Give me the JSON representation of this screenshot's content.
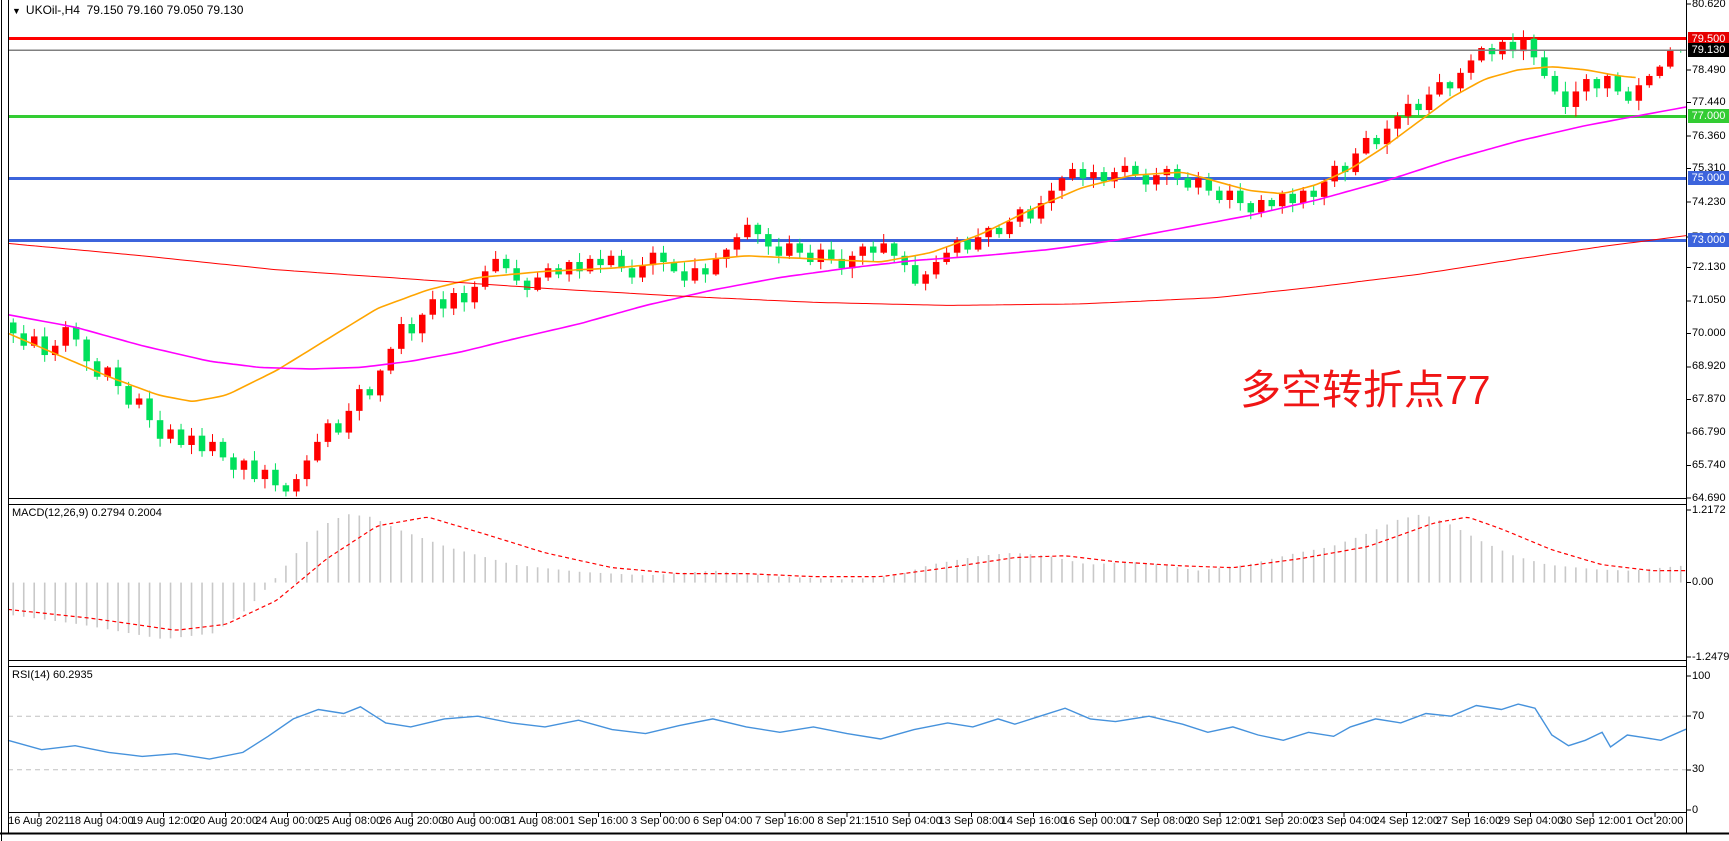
{
  "window": {
    "symbol_title": "UKOil-,H4",
    "ohlc_text": "79.150 79.160 79.050 79.130",
    "dropdown_glyph": "▼"
  },
  "annotation": {
    "text": "多空转折点77",
    "color": "#f01515"
  },
  "colors": {
    "up": "#ff0000",
    "down": "#00e05c",
    "ma_fast": "#ffa500",
    "ma_mid": "#ff00ff",
    "ma_slow": "#ff0000",
    "macd_hist": "#c8c8c8",
    "macd_signal": "#ff0000",
    "rsi_line": "#4692dc",
    "rsi_level": "#c0c0c0",
    "border": "#000000",
    "current_line": "#808080"
  },
  "chart_data": {
    "type": "candlestick",
    "title": "UKOil- H4 crude oil chart with MACD and RSI",
    "current": {
      "open": 79.15,
      "high": 79.16,
      "low": 79.05,
      "close": 79.13
    },
    "price_axis": {
      "min": 64.69,
      "max": 80.62,
      "ticks": [
        "80.620",
        "78.490",
        "77.440",
        "76.360",
        "75.310",
        "74.230",
        "73.100",
        "72.130",
        "71.050",
        "70.000",
        "68.920",
        "67.870",
        "66.790",
        "65.740",
        "64.690"
      ]
    },
    "hlines": [
      {
        "price": 79.5,
        "color": "#ff0000",
        "width": 3,
        "badge": "79.500",
        "badge_bg": "#e60000",
        "badge_fg": "#ffffff"
      },
      {
        "price": 79.13,
        "color": "#808080",
        "width": 1,
        "badge": "79.130",
        "badge_bg": "#000000",
        "badge_fg": "#ffffff"
      },
      {
        "price": 77.0,
        "color": "#33cc33",
        "width": 3,
        "badge": "77.000",
        "badge_bg": "#33cc33",
        "badge_fg": "#ffffff"
      },
      {
        "price": 75.0,
        "color": "#3c64dc",
        "width": 3,
        "badge": "75.000",
        "badge_bg": "#3c64dc",
        "badge_fg": "#ffffff"
      },
      {
        "price": 73.0,
        "color": "#3c64dc",
        "width": 3,
        "badge": "73.000",
        "badge_bg": "#3c64dc",
        "badge_fg": "#ffffff"
      }
    ],
    "closes": [
      70.0,
      69.6,
      69.9,
      69.3,
      69.6,
      70.2,
      69.8,
      69.1,
      68.6,
      68.9,
      68.3,
      67.7,
      67.9,
      67.2,
      66.6,
      66.9,
      66.4,
      66.7,
      66.2,
      66.5,
      66.0,
      65.6,
      65.9,
      65.3,
      65.6,
      65.1,
      64.9,
      65.3,
      65.9,
      66.5,
      67.1,
      66.8,
      67.5,
      68.2,
      68.0,
      68.8,
      69.5,
      70.3,
      70.0,
      70.6,
      71.1,
      70.8,
      71.3,
      71.0,
      71.5,
      72.0,
      72.4,
      72.1,
      71.7,
      71.4,
      71.8,
      72.1,
      71.9,
      72.3,
      72.0,
      72.4,
      72.2,
      72.5,
      72.1,
      71.8,
      72.2,
      72.6,
      72.3,
      72.0,
      71.7,
      72.1,
      71.9,
      72.4,
      72.7,
      73.1,
      73.5,
      73.2,
      72.8,
      72.5,
      72.9,
      72.6,
      72.3,
      72.7,
      72.4,
      72.1,
      72.5,
      72.8,
      72.6,
      72.9,
      72.5,
      72.2,
      71.6,
      71.9,
      72.3,
      72.6,
      73.0,
      72.7,
      73.1,
      73.4,
      73.2,
      73.6,
      74.0,
      73.7,
      74.2,
      74.6,
      75.0,
      75.3,
      75.0,
      75.2,
      74.9,
      75.2,
      75.4,
      75.1,
      74.8,
      75.1,
      75.3,
      75.0,
      74.7,
      75.0,
      74.6,
      74.3,
      74.6,
      74.2,
      73.9,
      74.3,
      74.1,
      74.5,
      74.2,
      74.6,
      74.4,
      74.9,
      75.4,
      75.2,
      75.8,
      76.3,
      76.1,
      76.6,
      77.0,
      77.4,
      77.2,
      77.7,
      78.1,
      77.9,
      78.4,
      78.8,
      79.2,
      79.0,
      79.4,
      79.1,
      79.5,
      78.9,
      78.3,
      77.8,
      77.3,
      77.8,
      78.2,
      77.9,
      78.3,
      77.8,
      77.5,
      78.0,
      78.3,
      78.6,
      79.15,
      79.13
    ],
    "ma_lines": [
      {
        "name": "fast-ma-orange",
        "color": "#ffa500",
        "points": [
          [
            0,
            70.0
          ],
          [
            0.03,
            69.3
          ],
          [
            0.06,
            68.6
          ],
          [
            0.09,
            68.0
          ],
          [
            0.11,
            67.8
          ],
          [
            0.13,
            68.0
          ],
          [
            0.16,
            68.8
          ],
          [
            0.19,
            69.8
          ],
          [
            0.22,
            70.8
          ],
          [
            0.25,
            71.4
          ],
          [
            0.28,
            71.8
          ],
          [
            0.32,
            72.0
          ],
          [
            0.36,
            72.1
          ],
          [
            0.4,
            72.3
          ],
          [
            0.44,
            72.5
          ],
          [
            0.48,
            72.4
          ],
          [
            0.52,
            72.3
          ],
          [
            0.55,
            72.6
          ],
          [
            0.58,
            73.2
          ],
          [
            0.61,
            74.0
          ],
          [
            0.64,
            74.7
          ],
          [
            0.67,
            75.1
          ],
          [
            0.7,
            75.2
          ],
          [
            0.72,
            74.9
          ],
          [
            0.74,
            74.6
          ],
          [
            0.76,
            74.5
          ],
          [
            0.78,
            74.8
          ],
          [
            0.8,
            75.3
          ],
          [
            0.82,
            76.0
          ],
          [
            0.84,
            76.8
          ],
          [
            0.86,
            77.6
          ],
          [
            0.88,
            78.2
          ],
          [
            0.9,
            78.5
          ],
          [
            0.92,
            78.6
          ],
          [
            0.94,
            78.5
          ],
          [
            0.96,
            78.3
          ],
          [
            0.97,
            78.25
          ]
        ]
      },
      {
        "name": "mid-ma-magenta",
        "color": "#ff00ff",
        "points": [
          [
            0,
            70.6
          ],
          [
            0.04,
            70.2
          ],
          [
            0.08,
            69.6
          ],
          [
            0.12,
            69.1
          ],
          [
            0.15,
            68.9
          ],
          [
            0.18,
            68.85
          ],
          [
            0.21,
            68.9
          ],
          [
            0.24,
            69.1
          ],
          [
            0.27,
            69.4
          ],
          [
            0.3,
            69.8
          ],
          [
            0.34,
            70.3
          ],
          [
            0.38,
            70.9
          ],
          [
            0.42,
            71.4
          ],
          [
            0.46,
            71.8
          ],
          [
            0.5,
            72.1
          ],
          [
            0.54,
            72.35
          ],
          [
            0.58,
            72.5
          ],
          [
            0.62,
            72.7
          ],
          [
            0.66,
            73.0
          ],
          [
            0.7,
            73.4
          ],
          [
            0.74,
            73.8
          ],
          [
            0.78,
            74.3
          ],
          [
            0.82,
            74.9
          ],
          [
            0.86,
            75.6
          ],
          [
            0.9,
            76.2
          ],
          [
            0.94,
            76.7
          ],
          [
            0.97,
            77.0
          ],
          [
            1,
            77.3
          ]
        ]
      },
      {
        "name": "slow-ma-red",
        "color": "#ff0000",
        "points": [
          [
            0,
            72.9
          ],
          [
            0.08,
            72.5
          ],
          [
            0.16,
            72.05
          ],
          [
            0.24,
            71.75
          ],
          [
            0.32,
            71.45
          ],
          [
            0.4,
            71.2
          ],
          [
            0.48,
            71.0
          ],
          [
            0.56,
            70.9
          ],
          [
            0.64,
            70.95
          ],
          [
            0.72,
            71.15
          ],
          [
            0.78,
            71.5
          ],
          [
            0.84,
            71.9
          ],
          [
            0.9,
            72.4
          ],
          [
            0.95,
            72.8
          ],
          [
            1,
            73.15
          ]
        ]
      }
    ],
    "macd": {
      "label": "MACD(12,26,9)",
      "values": "0.2794 0.2004",
      "axis": [
        "1.2172",
        "0.00",
        "-1.2479"
      ],
      "hist_keyframes": [
        [
          0,
          -0.55
        ],
        [
          0.04,
          -0.7
        ],
        [
          0.09,
          -0.95
        ],
        [
          0.12,
          -0.85
        ],
        [
          0.14,
          -0.45
        ],
        [
          0.155,
          0.0
        ],
        [
          0.17,
          0.5
        ],
        [
          0.185,
          0.95
        ],
        [
          0.2,
          1.15
        ],
        [
          0.215,
          1.1
        ],
        [
          0.23,
          0.9
        ],
        [
          0.26,
          0.6
        ],
        [
          0.3,
          0.3
        ],
        [
          0.34,
          0.18
        ],
        [
          0.38,
          0.12
        ],
        [
          0.42,
          0.2
        ],
        [
          0.46,
          0.1
        ],
        [
          0.5,
          0.05
        ],
        [
          0.53,
          0.12
        ],
        [
          0.55,
          0.3
        ],
        [
          0.58,
          0.45
        ],
        [
          0.6,
          0.5
        ],
        [
          0.62,
          0.45
        ],
        [
          0.645,
          0.3
        ],
        [
          0.67,
          0.35
        ],
        [
          0.69,
          0.3
        ],
        [
          0.71,
          0.2
        ],
        [
          0.74,
          0.3
        ],
        [
          0.77,
          0.5
        ],
        [
          0.79,
          0.6
        ],
        [
          0.81,
          0.8
        ],
        [
          0.83,
          1.05
        ],
        [
          0.845,
          1.15
        ],
        [
          0.86,
          1.0
        ],
        [
          0.88,
          0.7
        ],
        [
          0.9,
          0.45
        ],
        [
          0.92,
          0.3
        ],
        [
          0.95,
          0.22
        ],
        [
          0.97,
          0.2
        ],
        [
          1,
          0.28
        ]
      ],
      "signal_keyframes": [
        [
          0,
          -0.45
        ],
        [
          0.05,
          -0.6
        ],
        [
          0.1,
          -0.8
        ],
        [
          0.13,
          -0.7
        ],
        [
          0.16,
          -0.3
        ],
        [
          0.19,
          0.4
        ],
        [
          0.22,
          0.95
        ],
        [
          0.25,
          1.1
        ],
        [
          0.28,
          0.85
        ],
        [
          0.32,
          0.5
        ],
        [
          0.36,
          0.25
        ],
        [
          0.4,
          0.15
        ],
        [
          0.44,
          0.15
        ],
        [
          0.48,
          0.1
        ],
        [
          0.52,
          0.1
        ],
        [
          0.56,
          0.25
        ],
        [
          0.6,
          0.42
        ],
        [
          0.63,
          0.45
        ],
        [
          0.66,
          0.35
        ],
        [
          0.7,
          0.28
        ],
        [
          0.73,
          0.25
        ],
        [
          0.77,
          0.4
        ],
        [
          0.81,
          0.6
        ],
        [
          0.85,
          1.0
        ],
        [
          0.87,
          1.1
        ],
        [
          0.89,
          0.9
        ],
        [
          0.92,
          0.55
        ],
        [
          0.95,
          0.3
        ],
        [
          0.98,
          0.2
        ],
        [
          1,
          0.2004
        ]
      ]
    },
    "rsi": {
      "label": "RSI(14)",
      "value": "60.2935",
      "axis": [
        "100",
        "70",
        "30",
        "0"
      ],
      "levels": [
        70,
        30
      ],
      "keyframes": [
        [
          0,
          52
        ],
        [
          0.02,
          45
        ],
        [
          0.04,
          48
        ],
        [
          0.06,
          43
        ],
        [
          0.08,
          40
        ],
        [
          0.1,
          42
        ],
        [
          0.12,
          38
        ],
        [
          0.14,
          43
        ],
        [
          0.155,
          55
        ],
        [
          0.17,
          68
        ],
        [
          0.185,
          75
        ],
        [
          0.2,
          72
        ],
        [
          0.21,
          77
        ],
        [
          0.225,
          65
        ],
        [
          0.24,
          62
        ],
        [
          0.26,
          68
        ],
        [
          0.28,
          70
        ],
        [
          0.3,
          65
        ],
        [
          0.32,
          62
        ],
        [
          0.34,
          67
        ],
        [
          0.36,
          60
        ],
        [
          0.38,
          57
        ],
        [
          0.4,
          63
        ],
        [
          0.42,
          68
        ],
        [
          0.44,
          62
        ],
        [
          0.46,
          58
        ],
        [
          0.48,
          62
        ],
        [
          0.5,
          57
        ],
        [
          0.52,
          53
        ],
        [
          0.54,
          60
        ],
        [
          0.56,
          65
        ],
        [
          0.575,
          62
        ],
        [
          0.59,
          68
        ],
        [
          0.6,
          64
        ],
        [
          0.615,
          70
        ],
        [
          0.63,
          76
        ],
        [
          0.645,
          68
        ],
        [
          0.66,
          66
        ],
        [
          0.68,
          70
        ],
        [
          0.7,
          64
        ],
        [
          0.715,
          58
        ],
        [
          0.73,
          62
        ],
        [
          0.745,
          56
        ],
        [
          0.76,
          52
        ],
        [
          0.775,
          58
        ],
        [
          0.79,
          55
        ],
        [
          0.8,
          62
        ],
        [
          0.815,
          68
        ],
        [
          0.83,
          65
        ],
        [
          0.845,
          72
        ],
        [
          0.86,
          70
        ],
        [
          0.875,
          78
        ],
        [
          0.89,
          75
        ],
        [
          0.9,
          79
        ],
        [
          0.91,
          76
        ],
        [
          0.92,
          56
        ],
        [
          0.93,
          48
        ],
        [
          0.94,
          52
        ],
        [
          0.95,
          58
        ],
        [
          0.955,
          47
        ],
        [
          0.965,
          56
        ],
        [
          0.975,
          54
        ],
        [
          0.985,
          52
        ],
        [
          1,
          60.3
        ]
      ]
    },
    "time_labels": [
      "16 Aug 2021",
      "18 Aug 04:00",
      "19 Aug 12:00",
      "20 Aug 20:00",
      "24 Aug 00:00",
      "25 Aug 08:00",
      "26 Aug 20:00",
      "30 Aug 00:00",
      "31 Aug 08:00",
      "1 Sep 16:00",
      "3 Sep 00:00",
      "6 Sep 04:00",
      "7 Sep 16:00",
      "8 Sep 21:15",
      "10 Sep 04:00",
      "13 Sep 08:00",
      "14 Sep 16:00",
      "16 Sep 00:00",
      "17 Sep 08:00",
      "20 Sep 12:00",
      "21 Sep 20:00",
      "23 Sep 04:00",
      "24 Sep 12:00",
      "27 Sep 16:00",
      "29 Sep 04:00",
      "30 Sep 12:00",
      "1 Oct 20:00"
    ]
  }
}
